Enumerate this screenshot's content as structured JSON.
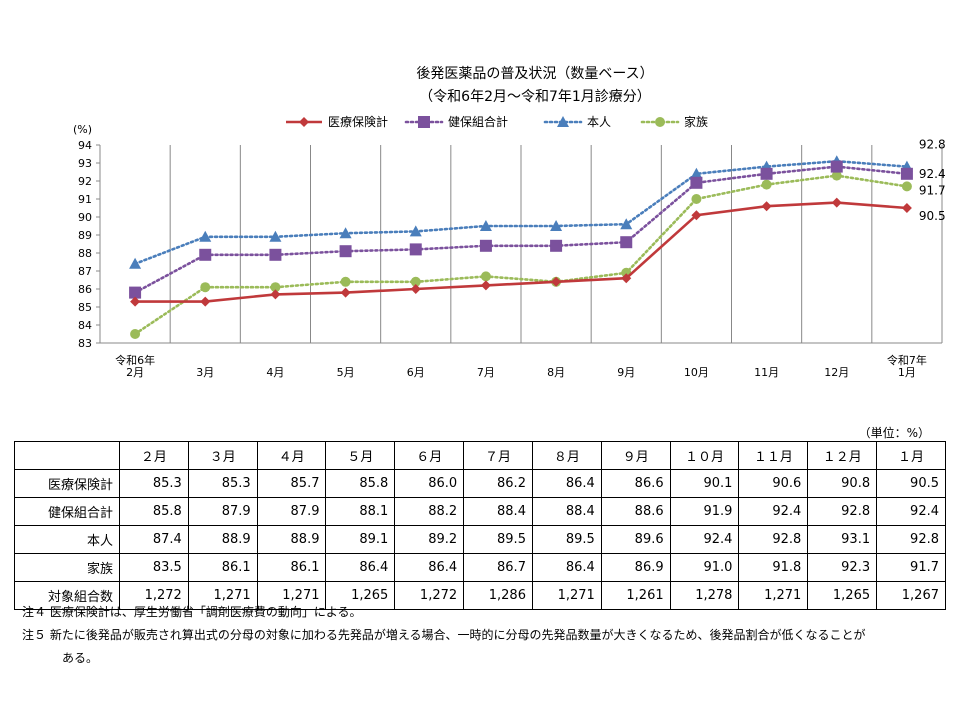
{
  "chart_data": {
    "type": "line",
    "title": "後発医薬品の普及状況（数量ベース）",
    "subtitle": "（令和6年2月～令和7年1月診療分）",
    "ylabel": "(%)",
    "ylim": [
      83,
      94
    ],
    "yticks": [
      83,
      84,
      85,
      86,
      87,
      88,
      89,
      90,
      91,
      92,
      93,
      94
    ],
    "categories": [
      "令和6年\n2月",
      "3月",
      "4月",
      "5月",
      "6月",
      "7月",
      "8月",
      "9月",
      "10月",
      "11月",
      "12月",
      "令和7年\n1月"
    ],
    "legend_position": "top",
    "grid": "vertical",
    "series": [
      {
        "name": "医療保険計",
        "color": "#C0393B",
        "marker": "diamond",
        "dash": "solid",
        "values": [
          85.3,
          85.3,
          85.7,
          85.8,
          86.0,
          86.2,
          86.4,
          86.6,
          90.1,
          90.6,
          90.8,
          90.5
        ],
        "end_label": "90.5"
      },
      {
        "name": "健保組合計",
        "color": "#7B519D",
        "marker": "square",
        "dash": "dotted",
        "values": [
          85.8,
          87.9,
          87.9,
          88.1,
          88.2,
          88.4,
          88.4,
          88.6,
          91.9,
          92.4,
          92.8,
          92.4
        ],
        "end_label": "92.4"
      },
      {
        "name": "本人",
        "color": "#4A7EBB",
        "marker": "triangle",
        "dash": "dotted",
        "values": [
          87.4,
          88.9,
          88.9,
          89.1,
          89.2,
          89.5,
          89.5,
          89.6,
          92.4,
          92.8,
          93.1,
          92.8
        ],
        "end_label": "92.8"
      },
      {
        "name": "家族",
        "color": "#9BBB59",
        "marker": "circle",
        "dash": "dotted",
        "values": [
          83.5,
          86.1,
          86.1,
          86.4,
          86.4,
          86.7,
          86.4,
          86.9,
          91.0,
          91.8,
          92.3,
          91.7
        ],
        "end_label": "91.7"
      }
    ]
  },
  "table": {
    "unit_note": "（単位：%）",
    "headers": [
      "２月",
      "３月",
      "４月",
      "５月",
      "６月",
      "７月",
      "８月",
      "９月",
      "１０月",
      "１１月",
      "１２月",
      "１月"
    ],
    "rows": [
      {
        "label": "医療保険計",
        "values": [
          "85.3",
          "85.3",
          "85.7",
          "85.8",
          "86.0",
          "86.2",
          "86.4",
          "86.6",
          "90.1",
          "90.6",
          "90.8",
          "90.5"
        ]
      },
      {
        "label": "健保組合計",
        "values": [
          "85.8",
          "87.9",
          "87.9",
          "88.1",
          "88.2",
          "88.4",
          "88.4",
          "88.6",
          "91.9",
          "92.4",
          "92.8",
          "92.4"
        ]
      },
      {
        "label": "本人",
        "values": [
          "87.4",
          "88.9",
          "88.9",
          "89.1",
          "89.2",
          "89.5",
          "89.5",
          "89.6",
          "92.4",
          "92.8",
          "93.1",
          "92.8"
        ]
      },
      {
        "label": "家族",
        "values": [
          "83.5",
          "86.1",
          "86.1",
          "86.4",
          "86.4",
          "86.7",
          "86.4",
          "86.9",
          "91.0",
          "91.8",
          "92.3",
          "91.7"
        ]
      },
      {
        "label": "対象組合数",
        "values": [
          "1,272",
          "1,271",
          "1,271",
          "1,265",
          "1,272",
          "1,286",
          "1,271",
          "1,261",
          "1,278",
          "1,271",
          "1,265",
          "1,267"
        ]
      }
    ]
  },
  "notes": {
    "note1": "注４ 医療保険計は、厚生労働省「調剤医療費の動向」による。",
    "note2": "注５ 新たに後発品が販売され算出式の分母の対象に加わる先発品が増える場合、一時的に分母の先発品数量が大きくなるため、後発品割合が低くなることが",
    "note2_cont": "ある。"
  }
}
